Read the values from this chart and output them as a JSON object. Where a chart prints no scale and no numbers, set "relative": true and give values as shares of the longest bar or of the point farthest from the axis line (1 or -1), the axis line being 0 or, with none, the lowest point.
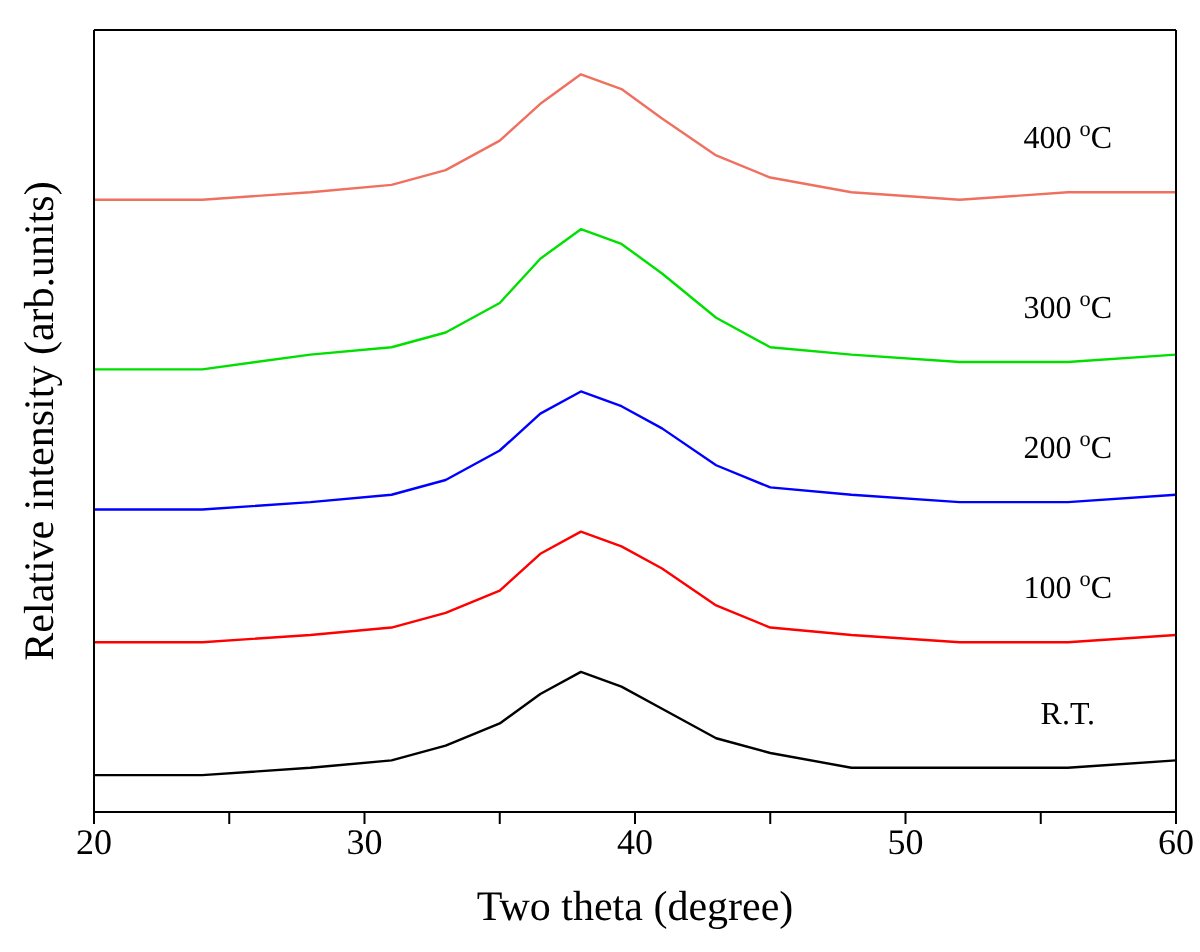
{
  "chart_data": {
    "type": "line",
    "relative": true,
    "xlabel": "Two theta (degree)",
    "ylabel": "Relative intensity (arb.units)",
    "x": [
      20,
      24,
      28,
      31,
      33,
      35,
      36.5,
      38,
      39.5,
      41,
      43,
      45,
      48,
      52,
      56,
      60
    ],
    "xlim": [
      20,
      60
    ],
    "xticks": [
      20,
      {
        "value": 25,
        "label": null
      },
      30,
      {
        "value": 35,
        "label": null
      },
      40,
      {
        "value": 45,
        "label": null
      },
      50,
      {
        "value": 55,
        "label": null
      },
      60
    ],
    "marker": "none",
    "line_style": "solid",
    "legend": false,
    "grid": false,
    "series": [
      {
        "name": "R.T.",
        "color": "#000000",
        "values": [
          0.05,
          0.05,
          0.06,
          0.07,
          0.09,
          0.12,
          0.16,
          0.19,
          0.17,
          0.14,
          0.1,
          0.08,
          0.06,
          0.06,
          0.06,
          0.07
        ]
      },
      {
        "name": "100 $^{o}$C",
        "color": "#ff0000",
        "values": [
          0.23,
          0.23,
          0.24,
          0.25,
          0.27,
          0.3,
          0.35,
          0.38,
          0.36,
          0.33,
          0.28,
          0.25,
          0.24,
          0.23,
          0.23,
          0.24
        ]
      },
      {
        "name": "200 $^{o}$C",
        "color": "#0000ff",
        "values": [
          0.41,
          0.41,
          0.42,
          0.43,
          0.45,
          0.49,
          0.54,
          0.57,
          0.55,
          0.52,
          0.47,
          0.44,
          0.43,
          0.42,
          0.42,
          0.43
        ]
      },
      {
        "name": "300 $^{o}$C",
        "color": "#00e000",
        "values": [
          0.6,
          0.6,
          0.62,
          0.63,
          0.65,
          0.69,
          0.75,
          0.79,
          0.77,
          0.73,
          0.67,
          0.63,
          0.62,
          0.61,
          0.61,
          0.62
        ]
      },
      {
        "name": "400 $^{o}$C",
        "color": "#f07060",
        "values": [
          0.83,
          0.83,
          0.84,
          0.85,
          0.87,
          0.91,
          0.96,
          1,
          0.98,
          0.94,
          0.89,
          0.86,
          0.84,
          0.83,
          0.84,
          0.84
        ]
      }
    ]
  }
}
